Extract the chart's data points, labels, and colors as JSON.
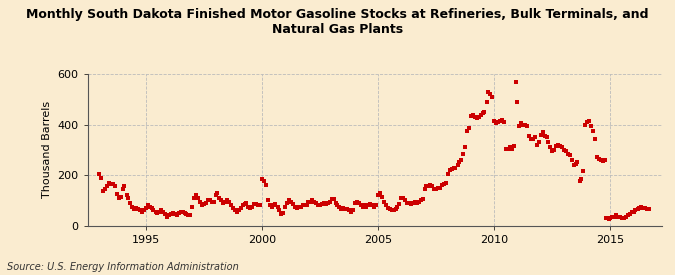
{
  "title": "Monthly South Dakota Finished Motor Gasoline Stocks at Refineries, Bulk Terminals, and\nNatural Gas Plants",
  "ylabel": "Thousand Barrels",
  "source": "Source: U.S. Energy Information Administration",
  "background_color": "#faecd0",
  "dot_color": "#cc0000",
  "xlim": [
    1992.5,
    2017.2
  ],
  "ylim": [
    0,
    600
  ],
  "yticks": [
    0,
    200,
    400,
    600
  ],
  "xticks": [
    1995,
    2000,
    2005,
    2010,
    2015
  ],
  "data": [
    [
      1993.0,
      205
    ],
    [
      1993.08,
      190
    ],
    [
      1993.17,
      135
    ],
    [
      1993.25,
      145
    ],
    [
      1993.33,
      155
    ],
    [
      1993.42,
      170
    ],
    [
      1993.5,
      165
    ],
    [
      1993.58,
      165
    ],
    [
      1993.67,
      155
    ],
    [
      1993.75,
      125
    ],
    [
      1993.83,
      110
    ],
    [
      1993.92,
      115
    ],
    [
      1994.0,
      145
    ],
    [
      1994.08,
      155
    ],
    [
      1994.17,
      120
    ],
    [
      1994.25,
      110
    ],
    [
      1994.33,
      90
    ],
    [
      1994.42,
      75
    ],
    [
      1994.5,
      65
    ],
    [
      1994.58,
      70
    ],
    [
      1994.67,
      65
    ],
    [
      1994.75,
      60
    ],
    [
      1994.83,
      55
    ],
    [
      1994.92,
      60
    ],
    [
      1995.0,
      70
    ],
    [
      1995.08,
      80
    ],
    [
      1995.17,
      75
    ],
    [
      1995.25,
      70
    ],
    [
      1995.33,
      60
    ],
    [
      1995.42,
      55
    ],
    [
      1995.5,
      50
    ],
    [
      1995.58,
      55
    ],
    [
      1995.67,
      60
    ],
    [
      1995.75,
      55
    ],
    [
      1995.83,
      45
    ],
    [
      1995.92,
      35
    ],
    [
      1996.0,
      40
    ],
    [
      1996.08,
      45
    ],
    [
      1996.17,
      50
    ],
    [
      1996.25,
      45
    ],
    [
      1996.33,
      40
    ],
    [
      1996.42,
      50
    ],
    [
      1996.5,
      55
    ],
    [
      1996.58,
      55
    ],
    [
      1996.67,
      50
    ],
    [
      1996.75,
      45
    ],
    [
      1996.83,
      40
    ],
    [
      1996.92,
      40
    ],
    [
      1997.0,
      75
    ],
    [
      1997.08,
      110
    ],
    [
      1997.17,
      120
    ],
    [
      1997.25,
      110
    ],
    [
      1997.33,
      95
    ],
    [
      1997.42,
      80
    ],
    [
      1997.5,
      85
    ],
    [
      1997.58,
      90
    ],
    [
      1997.67,
      100
    ],
    [
      1997.75,
      100
    ],
    [
      1997.83,
      95
    ],
    [
      1997.92,
      95
    ],
    [
      1998.0,
      120
    ],
    [
      1998.08,
      130
    ],
    [
      1998.17,
      110
    ],
    [
      1998.25,
      100
    ],
    [
      1998.33,
      90
    ],
    [
      1998.42,
      95
    ],
    [
      1998.5,
      100
    ],
    [
      1998.58,
      95
    ],
    [
      1998.67,
      80
    ],
    [
      1998.75,
      70
    ],
    [
      1998.83,
      60
    ],
    [
      1998.92,
      55
    ],
    [
      1999.0,
      60
    ],
    [
      1999.08,
      70
    ],
    [
      1999.17,
      80
    ],
    [
      1999.25,
      85
    ],
    [
      1999.33,
      90
    ],
    [
      1999.42,
      75
    ],
    [
      1999.5,
      70
    ],
    [
      1999.58,
      75
    ],
    [
      1999.67,
      85
    ],
    [
      1999.75,
      85
    ],
    [
      1999.83,
      80
    ],
    [
      1999.92,
      80
    ],
    [
      2000.0,
      185
    ],
    [
      2000.08,
      175
    ],
    [
      2000.17,
      160
    ],
    [
      2000.25,
      100
    ],
    [
      2000.33,
      80
    ],
    [
      2000.42,
      75
    ],
    [
      2000.5,
      80
    ],
    [
      2000.58,
      85
    ],
    [
      2000.67,
      75
    ],
    [
      2000.75,
      60
    ],
    [
      2000.83,
      45
    ],
    [
      2000.92,
      50
    ],
    [
      2001.0,
      75
    ],
    [
      2001.08,
      90
    ],
    [
      2001.17,
      100
    ],
    [
      2001.25,
      95
    ],
    [
      2001.33,
      85
    ],
    [
      2001.42,
      75
    ],
    [
      2001.5,
      70
    ],
    [
      2001.58,
      75
    ],
    [
      2001.67,
      75
    ],
    [
      2001.75,
      80
    ],
    [
      2001.83,
      80
    ],
    [
      2001.92,
      80
    ],
    [
      2002.0,
      95
    ],
    [
      2002.08,
      95
    ],
    [
      2002.17,
      100
    ],
    [
      2002.25,
      95
    ],
    [
      2002.33,
      90
    ],
    [
      2002.42,
      80
    ],
    [
      2002.5,
      80
    ],
    [
      2002.58,
      85
    ],
    [
      2002.67,
      90
    ],
    [
      2002.75,
      85
    ],
    [
      2002.83,
      90
    ],
    [
      2002.92,
      95
    ],
    [
      2003.0,
      105
    ],
    [
      2003.08,
      105
    ],
    [
      2003.17,
      90
    ],
    [
      2003.25,
      80
    ],
    [
      2003.33,
      75
    ],
    [
      2003.42,
      65
    ],
    [
      2003.5,
      70
    ],
    [
      2003.58,
      65
    ],
    [
      2003.67,
      65
    ],
    [
      2003.75,
      60
    ],
    [
      2003.83,
      55
    ],
    [
      2003.92,
      60
    ],
    [
      2004.0,
      90
    ],
    [
      2004.08,
      95
    ],
    [
      2004.17,
      90
    ],
    [
      2004.25,
      80
    ],
    [
      2004.33,
      75
    ],
    [
      2004.42,
      80
    ],
    [
      2004.5,
      75
    ],
    [
      2004.58,
      80
    ],
    [
      2004.67,
      85
    ],
    [
      2004.75,
      80
    ],
    [
      2004.83,
      75
    ],
    [
      2004.92,
      80
    ],
    [
      2005.0,
      120
    ],
    [
      2005.08,
      130
    ],
    [
      2005.17,
      115
    ],
    [
      2005.25,
      95
    ],
    [
      2005.33,
      80
    ],
    [
      2005.42,
      70
    ],
    [
      2005.5,
      65
    ],
    [
      2005.58,
      60
    ],
    [
      2005.67,
      60
    ],
    [
      2005.75,
      65
    ],
    [
      2005.83,
      75
    ],
    [
      2005.92,
      85
    ],
    [
      2006.0,
      110
    ],
    [
      2006.08,
      110
    ],
    [
      2006.17,
      100
    ],
    [
      2006.25,
      90
    ],
    [
      2006.33,
      90
    ],
    [
      2006.42,
      85
    ],
    [
      2006.5,
      90
    ],
    [
      2006.58,
      95
    ],
    [
      2006.67,
      90
    ],
    [
      2006.75,
      95
    ],
    [
      2006.83,
      100
    ],
    [
      2006.92,
      105
    ],
    [
      2007.0,
      145
    ],
    [
      2007.08,
      155
    ],
    [
      2007.17,
      155
    ],
    [
      2007.25,
      160
    ],
    [
      2007.33,
      155
    ],
    [
      2007.42,
      145
    ],
    [
      2007.5,
      145
    ],
    [
      2007.58,
      150
    ],
    [
      2007.67,
      150
    ],
    [
      2007.75,
      160
    ],
    [
      2007.83,
      165
    ],
    [
      2007.92,
      170
    ],
    [
      2008.0,
      205
    ],
    [
      2008.08,
      220
    ],
    [
      2008.17,
      225
    ],
    [
      2008.25,
      230
    ],
    [
      2008.33,
      230
    ],
    [
      2008.42,
      240
    ],
    [
      2008.5,
      250
    ],
    [
      2008.58,
      260
    ],
    [
      2008.67,
      285
    ],
    [
      2008.75,
      310
    ],
    [
      2008.83,
      375
    ],
    [
      2008.92,
      385
    ],
    [
      2009.0,
      435
    ],
    [
      2009.08,
      440
    ],
    [
      2009.17,
      430
    ],
    [
      2009.25,
      425
    ],
    [
      2009.33,
      430
    ],
    [
      2009.42,
      440
    ],
    [
      2009.5,
      445
    ],
    [
      2009.58,
      450
    ],
    [
      2009.67,
      490
    ],
    [
      2009.75,
      530
    ],
    [
      2009.83,
      520
    ],
    [
      2009.92,
      510
    ],
    [
      2010.0,
      415
    ],
    [
      2010.08,
      405
    ],
    [
      2010.17,
      410
    ],
    [
      2010.25,
      415
    ],
    [
      2010.33,
      420
    ],
    [
      2010.42,
      410
    ],
    [
      2010.5,
      305
    ],
    [
      2010.58,
      305
    ],
    [
      2010.67,
      310
    ],
    [
      2010.75,
      305
    ],
    [
      2010.83,
      315
    ],
    [
      2010.92,
      570
    ],
    [
      2011.0,
      490
    ],
    [
      2011.08,
      395
    ],
    [
      2011.17,
      405
    ],
    [
      2011.25,
      400
    ],
    [
      2011.33,
      400
    ],
    [
      2011.42,
      395
    ],
    [
      2011.5,
      355
    ],
    [
      2011.58,
      345
    ],
    [
      2011.67,
      345
    ],
    [
      2011.75,
      350
    ],
    [
      2011.83,
      320
    ],
    [
      2011.92,
      330
    ],
    [
      2012.0,
      360
    ],
    [
      2012.08,
      370
    ],
    [
      2012.17,
      355
    ],
    [
      2012.25,
      350
    ],
    [
      2012.33,
      330
    ],
    [
      2012.42,
      310
    ],
    [
      2012.5,
      295
    ],
    [
      2012.58,
      300
    ],
    [
      2012.67,
      315
    ],
    [
      2012.75,
      320
    ],
    [
      2012.83,
      315
    ],
    [
      2012.92,
      310
    ],
    [
      2013.0,
      300
    ],
    [
      2013.08,
      295
    ],
    [
      2013.17,
      285
    ],
    [
      2013.25,
      280
    ],
    [
      2013.33,
      260
    ],
    [
      2013.42,
      240
    ],
    [
      2013.5,
      245
    ],
    [
      2013.58,
      250
    ],
    [
      2013.67,
      175
    ],
    [
      2013.75,
      185
    ],
    [
      2013.83,
      215
    ],
    [
      2013.92,
      400
    ],
    [
      2014.0,
      410
    ],
    [
      2014.08,
      415
    ],
    [
      2014.17,
      395
    ],
    [
      2014.25,
      375
    ],
    [
      2014.33,
      345
    ],
    [
      2014.42,
      270
    ],
    [
      2014.5,
      265
    ],
    [
      2014.58,
      260
    ],
    [
      2014.67,
      255
    ],
    [
      2014.75,
      260
    ],
    [
      2014.83,
      30
    ],
    [
      2014.92,
      25
    ],
    [
      2015.0,
      30
    ],
    [
      2015.08,
      35
    ],
    [
      2015.17,
      35
    ],
    [
      2015.25,
      40
    ],
    [
      2015.33,
      35
    ],
    [
      2015.42,
      35
    ],
    [
      2015.5,
      30
    ],
    [
      2015.58,
      30
    ],
    [
      2015.67,
      35
    ],
    [
      2015.75,
      40
    ],
    [
      2015.83,
      45
    ],
    [
      2015.92,
      55
    ],
    [
      2016.0,
      55
    ],
    [
      2016.08,
      60
    ],
    [
      2016.17,
      65
    ],
    [
      2016.25,
      70
    ],
    [
      2016.33,
      75
    ],
    [
      2016.42,
      70
    ],
    [
      2016.5,
      70
    ],
    [
      2016.58,
      65
    ],
    [
      2016.67,
      65
    ]
  ]
}
